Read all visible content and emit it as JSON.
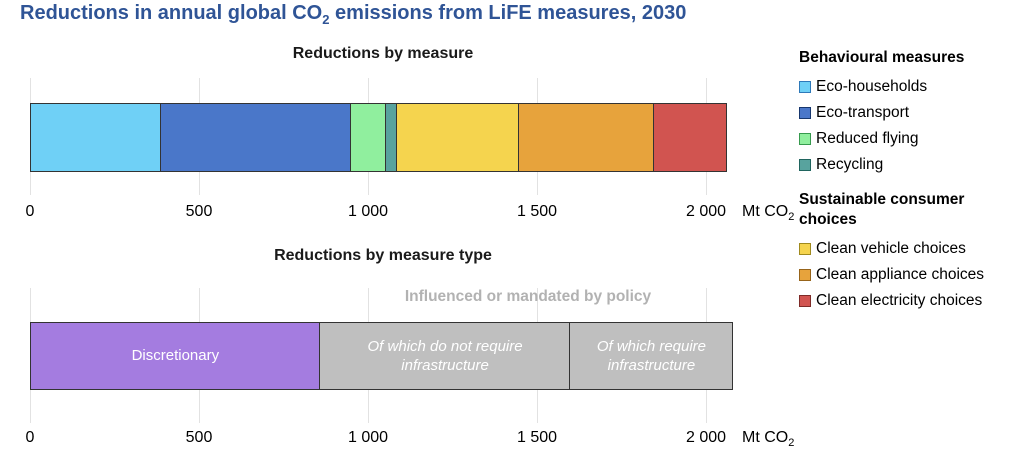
{
  "title": {
    "prefix": "Reductions in annual global CO",
    "sub": "2",
    "suffix": " emissions from LiFE measures, 2030"
  },
  "colors": {
    "title": "#2F5496",
    "chart_title": "#1A1A1A",
    "annotation": "#B2B2B2",
    "segment_border": "#333333",
    "gridline": "#E2E2E2",
    "axis_text": "#000000",
    "segment_label": "#FFFFFF"
  },
  "legend": {
    "groups": [
      {
        "header": "Behavioural measures",
        "items": [
          {
            "label": "Eco-households",
            "color": "#6FD0F6",
            "border": "#2E79B9"
          },
          {
            "label": "Eco-transport",
            "color": "#4A77C9",
            "border": "#17376E"
          },
          {
            "label": "Reduced flying",
            "color": "#90EF9E",
            "border": "#379A4E"
          },
          {
            "label": "Recycling",
            "color": "#58A39E",
            "border": "#20655F"
          }
        ]
      },
      {
        "header": "Sustainable consumer choices",
        "items": [
          {
            "label": "Clean vehicle choices",
            "color": "#F5D44E",
            "border": "#A08A1E"
          },
          {
            "label": "Clean appliance choices",
            "color": "#E7A33C",
            "border": "#97641A"
          },
          {
            "label": "Clean electricity choices",
            "color": "#D15450",
            "border": "#7E2B28"
          }
        ]
      }
    ]
  },
  "chart_data": [
    {
      "type": "bar",
      "orientation": "horizontal",
      "stacked": true,
      "grid": true,
      "legend_position": "right",
      "title": "Reductions by measure",
      "xlabel": "Mt CO2",
      "xlim": [
        0,
        2090
      ],
      "xticks": [
        {
          "label": "0",
          "value": 0
        },
        {
          "label": "500",
          "value": 500
        },
        {
          "label": "1 000",
          "value": 1000
        },
        {
          "label": "1 500",
          "value": 1500
        },
        {
          "label": "2 000",
          "value": 2000
        }
      ],
      "unit": {
        "prefix": "Mt CO",
        "sub": "2"
      },
      "segments": [
        {
          "label": "Eco-households",
          "value": 390,
          "color": "#6FD0F6",
          "group": "Behavioural measures",
          "show_label": false
        },
        {
          "label": "Eco-transport",
          "value": 565,
          "color": "#4A77C9",
          "group": "Behavioural measures",
          "show_label": false
        },
        {
          "label": "Reduced flying",
          "value": 110,
          "color": "#90EF9E",
          "group": "Behavioural measures",
          "show_label": false
        },
        {
          "label": "Recycling",
          "value": 35,
          "color": "#58A39E",
          "group": "Behavioural measures",
          "show_label": false
        },
        {
          "label": "Clean vehicle choices",
          "value": 365,
          "color": "#F5D44E",
          "group": "Sustainable consumer choices",
          "show_label": false
        },
        {
          "label": "Clean appliance choices",
          "value": 405,
          "color": "#E7A33C",
          "group": "Sustainable consumer choices",
          "show_label": false
        },
        {
          "label": "Clean electricity choices",
          "value": 220,
          "color": "#D15450",
          "group": "Sustainable consumer choices",
          "show_label": false
        }
      ]
    },
    {
      "type": "bar",
      "orientation": "horizontal",
      "stacked": true,
      "grid": true,
      "title": "Reductions by measure type",
      "annotation": "Influenced or mandated by policy",
      "xlabel": "Mt CO2",
      "xlim": [
        0,
        2090
      ],
      "xticks": [
        {
          "label": "0",
          "value": 0
        },
        {
          "label": "500",
          "value": 500
        },
        {
          "label": "1 000",
          "value": 1000
        },
        {
          "label": "1 500",
          "value": 1500
        },
        {
          "label": "2 000",
          "value": 2000
        }
      ],
      "unit": {
        "prefix": "Mt CO",
        "sub": "2"
      },
      "segments": [
        {
          "label": "Discretionary",
          "value": 860,
          "color": "#A47CE0",
          "show_label": true,
          "italic": false
        },
        {
          "label": "Of which do not require infrastructure",
          "value": 745,
          "color": "#BFBFBF",
          "show_label": true,
          "italic": true
        },
        {
          "label": "Of which require infrastructure",
          "value": 485,
          "color": "#BFBFBF",
          "show_label": true,
          "italic": true
        }
      ]
    }
  ]
}
